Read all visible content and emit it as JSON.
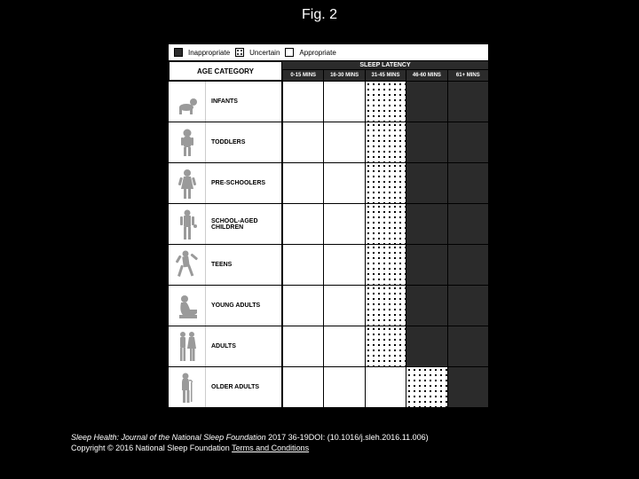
{
  "title": "Fig. 2",
  "legend": {
    "inappropriate": "Inappropriate",
    "uncertain": "Uncertain",
    "appropriate": "Appropriate"
  },
  "header": {
    "age": "AGE CATEGORY",
    "latency_title": "SLEEP LATENCY",
    "cols": [
      "0-15 MINS",
      "16-30 MINS",
      "31-45 MINS",
      "46-60 MINS",
      "61+ MINS"
    ]
  },
  "fill_colors": {
    "inappropriate": "#2b2b2b",
    "uncertain_dot": "#000000",
    "uncertain_bg": "#ffffff",
    "appropriate": "#ffffff"
  },
  "icon_fill": "#9a9a9a",
  "rows": [
    {
      "label": "INFANTS",
      "icon": "infant",
      "cells": [
        "appropriate",
        "appropriate",
        "uncertain",
        "inappropriate",
        "inappropriate"
      ]
    },
    {
      "label": "TODDLERS",
      "icon": "toddler",
      "cells": [
        "appropriate",
        "appropriate",
        "uncertain",
        "inappropriate",
        "inappropriate"
      ]
    },
    {
      "label": "PRE-SCHOOLERS",
      "icon": "preschool",
      "cells": [
        "appropriate",
        "appropriate",
        "uncertain",
        "inappropriate",
        "inappropriate"
      ]
    },
    {
      "label": "SCHOOL-AGED CHILDREN",
      "icon": "schoolchild",
      "cells": [
        "appropriate",
        "appropriate",
        "uncertain",
        "inappropriate",
        "inappropriate"
      ]
    },
    {
      "label": "TEENS",
      "icon": "teen",
      "cells": [
        "appropriate",
        "appropriate",
        "uncertain",
        "inappropriate",
        "inappropriate"
      ]
    },
    {
      "label": "YOUNG ADULTS",
      "icon": "youngadult",
      "cells": [
        "appropriate",
        "appropriate",
        "uncertain",
        "inappropriate",
        "inappropriate"
      ]
    },
    {
      "label": "ADULTS",
      "icon": "adults",
      "cells": [
        "appropriate",
        "appropriate",
        "uncertain",
        "inappropriate",
        "inappropriate"
      ]
    },
    {
      "label": "OLDER ADULTS",
      "icon": "olderadult",
      "cells": [
        "appropriate",
        "appropriate",
        "appropriate",
        "uncertain",
        "inappropriate"
      ]
    }
  ],
  "citation": {
    "line1_a": "Sleep Health: Journal of the National Sleep Foundation",
    "line1_b": " 2017 36-19DOI: (10.1016/j.sleh.2016.11.006)",
    "line2_a": "Copyright © 2016 National Sleep Foundation ",
    "line2_link": "Terms and Conditions"
  }
}
